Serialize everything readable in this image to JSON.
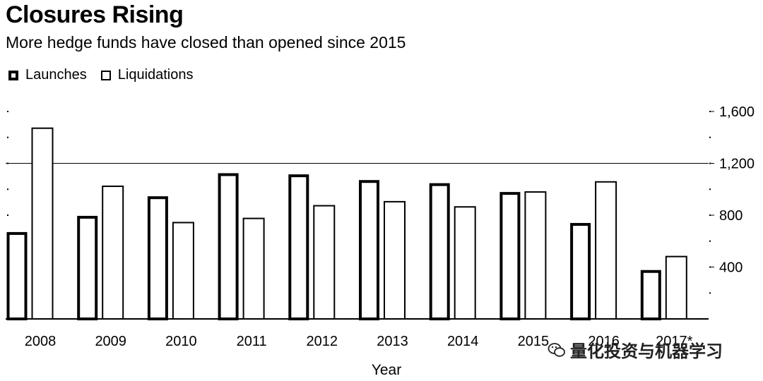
{
  "title": "Closures Rising",
  "subtitle": "More hedge funds have closed than opened since 2015",
  "legend": [
    {
      "label": "Launches",
      "style": "thick"
    },
    {
      "label": "Liquidations",
      "style": "thin"
    }
  ],
  "watermark": "量化投资与机器学习",
  "chart_data": {
    "type": "bar",
    "title": "Closures Rising",
    "subtitle": "More hedge funds have closed than opened since 2015",
    "xlabel": "Year",
    "ylabel": "",
    "categories": [
      "2008",
      "2009",
      "2010",
      "2011",
      "2012",
      "2013",
      "2014",
      "2015",
      "2016",
      "2017*"
    ],
    "series": [
      {
        "name": "Launches",
        "values": [
          659,
          784,
          935,
          1113,
          1104,
          1060,
          1036,
          968,
          729,
          366
        ]
      },
      {
        "name": "Liquidations",
        "values": [
          1471,
          1023,
          743,
          775,
          873,
          904,
          864,
          979,
          1057,
          481
        ]
      }
    ],
    "ylim": [
      0,
      1600
    ],
    "yticks": [
      400,
      800,
      1200,
      1600
    ],
    "ytick_labels": [
      "400",
      "800",
      "1,200",
      "1,600"
    ],
    "y_axis_side": "right",
    "reference_line": 1200,
    "legend_position": "top-left",
    "grid": false
  }
}
